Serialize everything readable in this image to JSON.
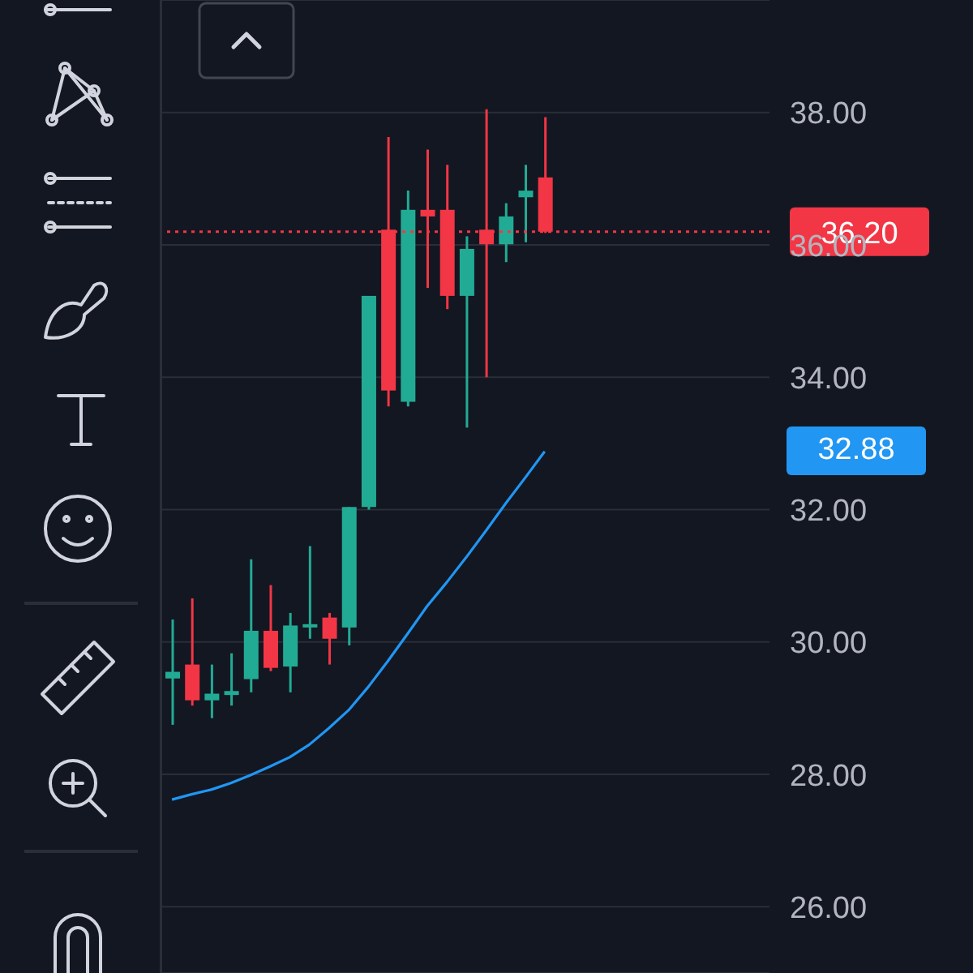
{
  "chart_data": {
    "type": "candlestick",
    "categories": [
      null,
      null,
      null,
      null,
      null,
      null,
      null,
      null,
      null,
      null,
      null,
      null,
      null,
      null,
      null,
      null,
      null,
      null,
      null,
      null,
      null,
      null,
      null,
      null,
      null,
      null,
      null,
      null,
      null,
      null,
      null
    ],
    "ohlc": [
      [
        29.45,
        30.34,
        28.75,
        29.55
      ],
      [
        29.66,
        30.66,
        29.04,
        29.12
      ],
      [
        29.12,
        29.66,
        28.85,
        29.22
      ],
      [
        29.2,
        29.83,
        29.04,
        29.26
      ],
      [
        29.44,
        31.25,
        29.24,
        30.17
      ],
      [
        30.17,
        30.86,
        29.56,
        29.61
      ],
      [
        29.63,
        30.44,
        29.24,
        30.25
      ],
      [
        30.22,
        31.45,
        30.05,
        30.27
      ],
      [
        30.37,
        30.44,
        29.66,
        30.05
      ],
      [
        30.22,
        32.04,
        29.95,
        32.04
      ],
      [
        32.04,
        35.23,
        32.0,
        35.23
      ],
      [
        36.23,
        37.63,
        33.56,
        33.8
      ],
      [
        33.63,
        36.82,
        33.56,
        36.53
      ],
      [
        36.53,
        37.44,
        35.35,
        36.43
      ],
      [
        36.53,
        37.21,
        35.03,
        35.23
      ],
      [
        35.23,
        36.13,
        33.24,
        35.94
      ],
      [
        36.23,
        38.05,
        34.0,
        36.01
      ],
      [
        36.01,
        36.63,
        35.74,
        36.43
      ],
      [
        36.72,
        37.21,
        36.04,
        36.82
      ],
      [
        37.02,
        37.93,
        36.18,
        36.2
      ],
      null,
      null,
      null,
      null,
      null,
      null,
      null,
      null,
      null,
      null,
      null
    ],
    "colors": [
      "#22ab94",
      "#f23645",
      "#22ab94",
      "#22ab94",
      "#22ab94",
      "#f23645",
      "#22ab94",
      "#22ab94",
      "#f23645",
      "#22ab94",
      "#22ab94",
      "#f23645",
      "#22ab94",
      "#f23645",
      "#f23645",
      "#22ab94",
      "#f23645",
      "#22ab94",
      "#22ab94",
      "#f23645",
      null,
      null,
      null,
      null,
      null,
      null,
      null,
      null,
      null,
      null,
      null
    ],
    "series": [
      {
        "type": "line",
        "color": "#2196f3",
        "values": [
          27.62,
          27.7,
          27.77,
          27.87,
          27.99,
          28.12,
          28.26,
          28.45,
          28.7,
          28.97,
          29.32,
          29.71,
          30.12,
          30.54,
          30.9,
          31.28,
          31.68,
          32.09,
          32.48,
          32.88,
          null,
          null,
          null,
          null,
          null,
          null,
          null,
          null,
          null,
          null,
          null
        ]
      }
    ],
    "ylim": [
      25,
      39.7
    ],
    "yticks": [
      {
        "value": 26,
        "label": "26.00"
      },
      {
        "value": 28,
        "label": "28.00"
      },
      {
        "value": 30,
        "label": "30.00"
      },
      {
        "value": 32,
        "label": "32.00"
      },
      {
        "value": 34,
        "label": "34.00"
      },
      {
        "value": 36,
        "label": "36.00"
      },
      {
        "value": 38,
        "label": "38.00"
      }
    ],
    "tick_labels": "y",
    "grid": "y",
    "ref_lines": [
      {
        "axis": "y",
        "value": 36.2,
        "label": "36.20",
        "color": "#f23645",
        "line_style": "dotted"
      }
    ],
    "annotations": [
      "32.88"
    ]
  }
}
